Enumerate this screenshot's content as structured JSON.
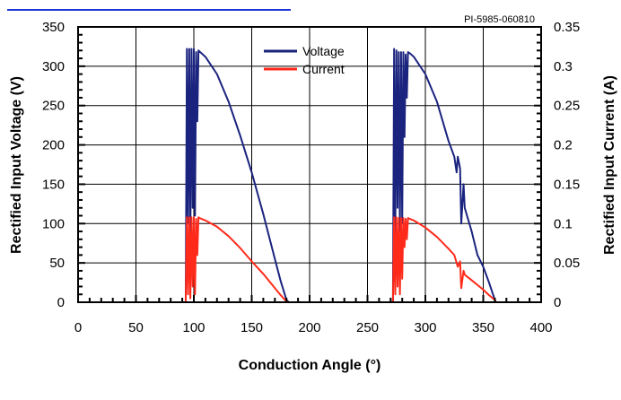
{
  "chart_data": {
    "type": "line",
    "figure_id": "PI-5985-060810",
    "xlabel": "Conduction Angle (°)",
    "ylabel_left": "Rectified Input Voltage (V)",
    "ylabel_right": "Rectified Input Current (A)",
    "xlim": [
      0,
      400
    ],
    "ylim_left": [
      0,
      350
    ],
    "ylim_right": [
      0,
      0.35
    ],
    "x_ticks": [
      "0",
      "50",
      "100",
      "150",
      "200",
      "250",
      "300",
      "350",
      "400"
    ],
    "y_ticks_left": [
      "0",
      "50",
      "100",
      "150",
      "200",
      "250",
      "300",
      "350"
    ],
    "y_ticks_right": [
      "0",
      "0.05",
      "0.1",
      "0.15",
      "0.2",
      "0.25",
      "0.3",
      "0.35"
    ],
    "grid": true,
    "legend_position": "top-center",
    "series": [
      {
        "name": "Voltage",
        "axis": "left",
        "color": "#1a237e",
        "x": [
          0,
          93,
          94,
          95,
          96,
          97,
          98,
          99,
          100,
          101,
          102,
          103,
          104,
          110,
          120,
          130,
          140,
          150,
          160,
          170,
          175,
          180,
          182,
          200,
          220,
          240,
          270,
          272,
          273,
          274,
          275,
          276,
          277,
          278,
          279,
          280,
          281,
          282,
          283,
          284,
          285,
          287,
          290,
          300,
          310,
          320,
          325,
          327,
          328,
          330,
          331,
          333,
          334,
          340,
          345,
          350,
          355,
          360,
          361,
          400
        ],
        "y": [
          0,
          0,
          322,
          100,
          322,
          80,
          322,
          120,
          322,
          110,
          318,
          230,
          320,
          312,
          290,
          255,
          212,
          165,
          112,
          55,
          27,
          3,
          0,
          0,
          0,
          0,
          0,
          0,
          322,
          80,
          320,
          120,
          318,
          90,
          318,
          100,
          318,
          210,
          315,
          260,
          318,
          316,
          312,
          290,
          255,
          205,
          185,
          165,
          185,
          170,
          100,
          150,
          120,
          90,
          60,
          45,
          25,
          3,
          0,
          0
        ]
      },
      {
        "name": "Current",
        "axis": "right",
        "color": "#ff2a1a",
        "x": [
          0,
          93,
          94,
          95,
          96,
          97,
          98,
          99,
          100,
          101,
          102,
          103,
          104,
          105,
          110,
          120,
          130,
          140,
          150,
          160,
          170,
          175,
          180,
          182,
          200,
          220,
          240,
          270,
          272,
          273,
          274,
          275,
          276,
          277,
          278,
          279,
          280,
          281,
          282,
          283,
          284,
          285,
          290,
          300,
          310,
          320,
          325,
          327,
          328,
          330,
          331,
          333,
          334,
          340,
          350,
          355,
          360,
          361,
          400
        ],
        "y": [
          0,
          0,
          0.108,
          0.01,
          0.108,
          0.005,
          0.108,
          0.02,
          0.108,
          0.01,
          0.106,
          0.06,
          0.108,
          0.107,
          0.104,
          0.096,
          0.084,
          0.069,
          0.052,
          0.036,
          0.018,
          0.009,
          0.001,
          0,
          0,
          0,
          0,
          0,
          0,
          0.108,
          0.01,
          0.108,
          0.02,
          0.107,
          0.01,
          0.107,
          0.03,
          0.107,
          0.07,
          0.106,
          0.08,
          0.107,
          0.104,
          0.095,
          0.083,
          0.068,
          0.06,
          0.05,
          0.045,
          0.052,
          0.018,
          0.04,
          0.035,
          0.028,
          0.016,
          0.009,
          0.003,
          0,
          0
        ]
      }
    ]
  }
}
